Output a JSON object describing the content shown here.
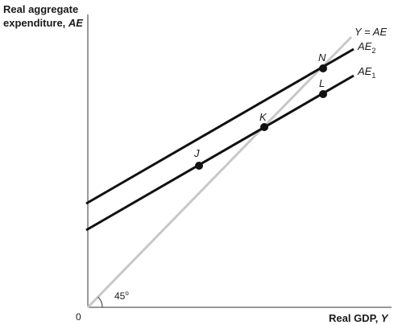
{
  "figure": {
    "y_axis_title_line1": "Real aggregate",
    "y_axis_title_line2": "expenditure, ",
    "y_axis_title_symbol": "AE",
    "x_axis_title": "Real GDP, ",
    "x_axis_title_symbol": "Y",
    "origin_label": "0",
    "angle_label": "45",
    "angle_degree": "o"
  },
  "lines": {
    "identity": {
      "name": "Y = AE",
      "color": "#c8c8c8"
    },
    "ae2": {
      "name": "AE",
      "subscript": "2",
      "color": "#111111"
    },
    "ae1": {
      "name": "AE",
      "subscript": "1",
      "color": "#111111"
    }
  },
  "points": {
    "j": "J",
    "k": "K",
    "l": "L",
    "n": "N"
  }
}
